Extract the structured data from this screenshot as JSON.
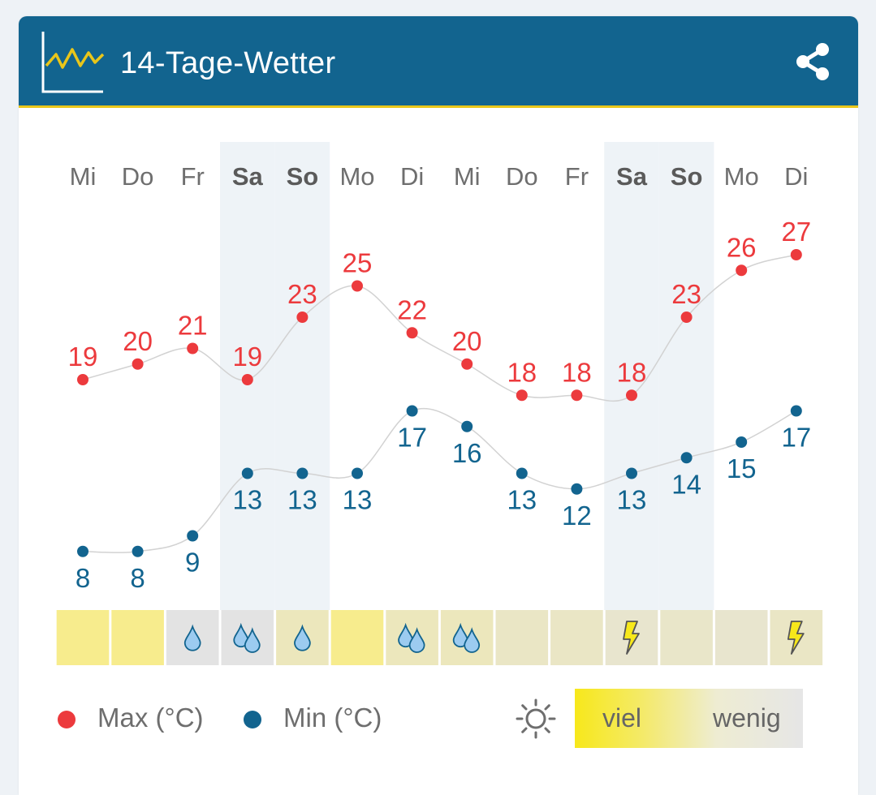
{
  "header": {
    "title": "14-Tage-Wetter",
    "colors": {
      "background": "#12648f",
      "accent": "#e9c61a"
    },
    "icons": {
      "chart": "trend-chart-icon",
      "share": "share-icon"
    }
  },
  "chart_data": {
    "type": "line",
    "days": [
      "Mi",
      "Do",
      "Fr",
      "Sa",
      "So",
      "Mo",
      "Di",
      "Mi",
      "Do",
      "Fr",
      "Sa",
      "So",
      "Mo",
      "Di"
    ],
    "weekend": [
      false,
      false,
      false,
      true,
      true,
      false,
      false,
      false,
      false,
      false,
      true,
      true,
      false,
      false
    ],
    "series": [
      {
        "name": "Max (°C)",
        "color": "#ec3a3d",
        "values": [
          19,
          20,
          21,
          19,
          23,
          25,
          22,
          20,
          18,
          18,
          18,
          23,
          26,
          27
        ]
      },
      {
        "name": "Min (°C)",
        "color": "#12648f",
        "values": [
          8,
          8,
          9,
          13,
          13,
          13,
          17,
          16,
          13,
          12,
          13,
          14,
          15,
          17
        ]
      }
    ],
    "ylim": [
      5,
      30
    ],
    "sunshine_levels": [
      1.0,
      1.0,
      0.0,
      0.0,
      0.45,
      1.0,
      0.45,
      0.45,
      0.35,
      0.35,
      0.25,
      0.3,
      0.25,
      0.35
    ],
    "precipitation": [
      "none",
      "none",
      "drop",
      "drops",
      "drop",
      "none",
      "drops",
      "drops",
      "none",
      "none",
      "thunder",
      "none",
      "none",
      "thunder"
    ]
  },
  "legend": {
    "max_label": "Max (°C)",
    "min_label": "Min (°C)",
    "sun_icon": "sun-icon",
    "scale_high": "viel",
    "scale_low": "wenig"
  }
}
